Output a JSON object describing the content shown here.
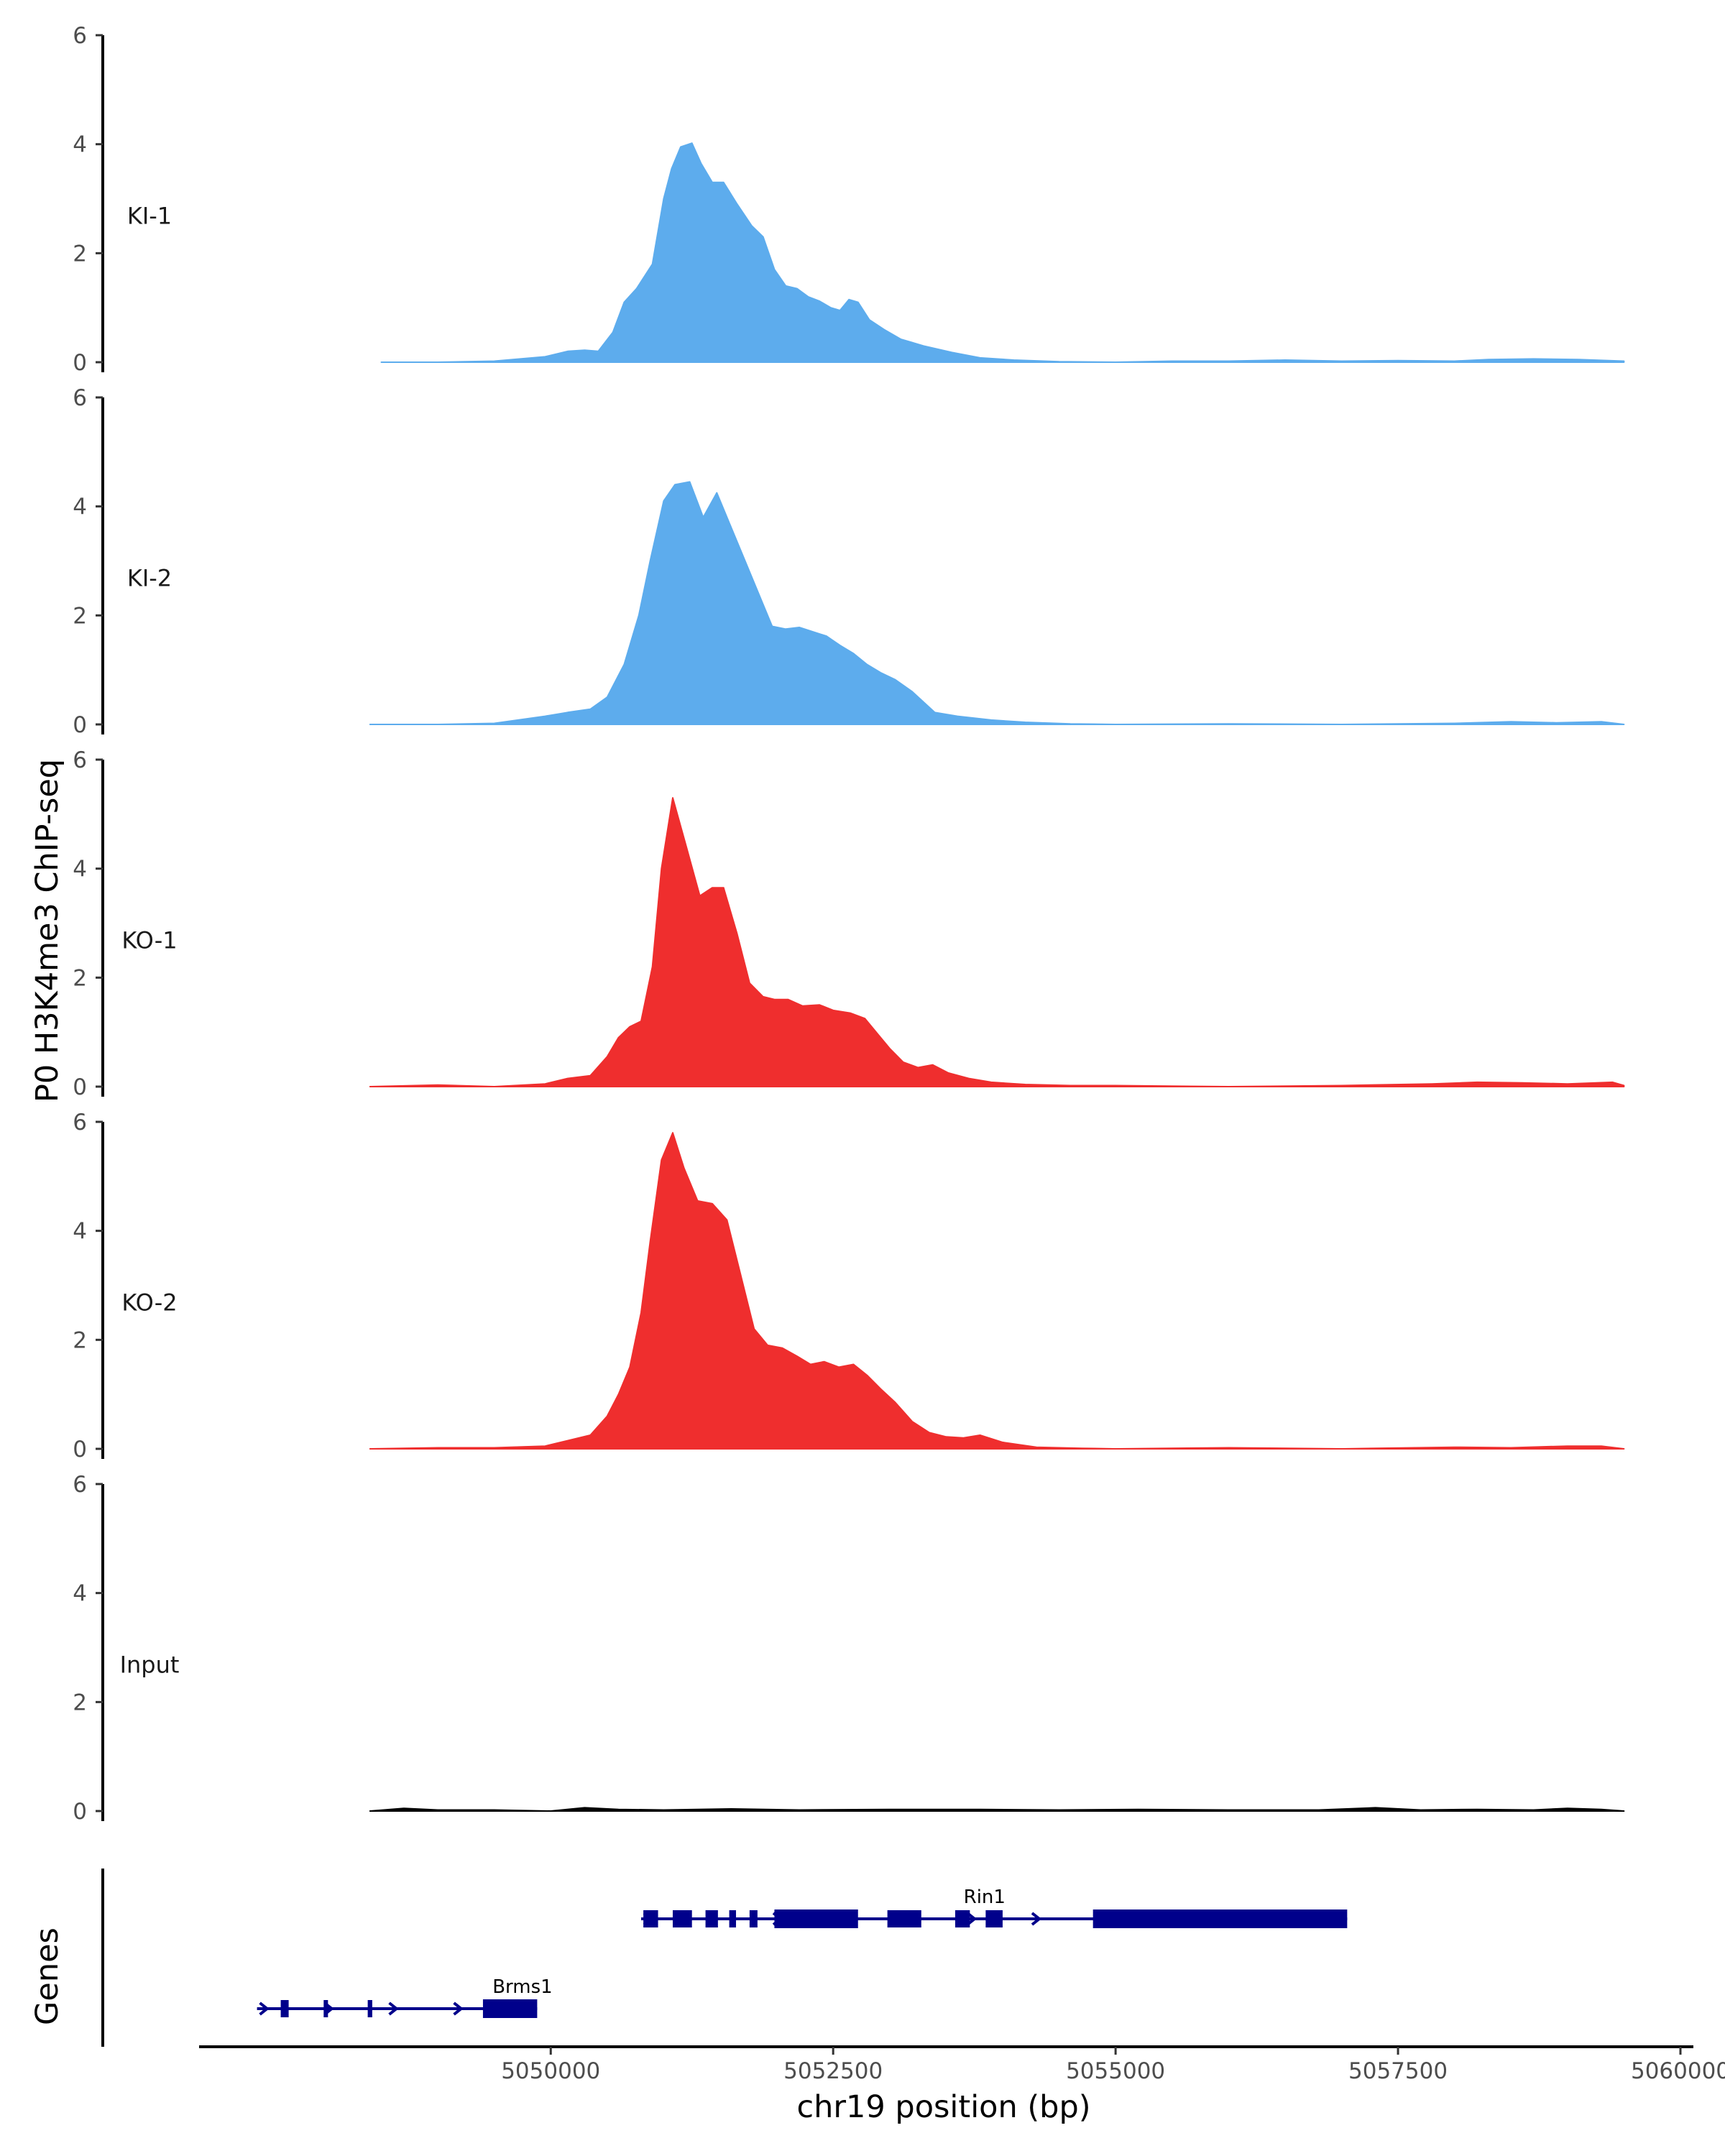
{
  "chart_data": {
    "type": "area",
    "title": "",
    "ylabel": "P0 H3K4me3 ChIP-seq",
    "xlabel": "chr19 position (bp)",
    "genes_ylabel": "Genes",
    "xlim": [
      5046900,
      5060000
    ],
    "ylim": [
      0,
      6
    ],
    "y_ticks": [
      0,
      2,
      4,
      6
    ],
    "x_ticks": [
      {
        "value": 5050000,
        "label": "5050000"
      },
      {
        "value": 5052500,
        "label": "5052500"
      },
      {
        "value": 5055000,
        "label": "5055000"
      },
      {
        "value": 5057500,
        "label": "5057500"
      },
      {
        "value": 5060000,
        "label": "5060000"
      }
    ],
    "tracks": [
      {
        "name": "KI-1",
        "color": "#5daced",
        "x": [
          5048500,
          5049000,
          5049500,
          5049950,
          5050150,
          5050300,
          5050420,
          5050550,
          5050650,
          5050760,
          5050900,
          5051000,
          5051070,
          5051150,
          5051250,
          5051330,
          5051430,
          5051530,
          5051650,
          5051780,
          5051880,
          5051980,
          5052080,
          5052180,
          5052280,
          5052380,
          5052480,
          5052560,
          5052640,
          5052720,
          5052820,
          5052950,
          5053100,
          5053300,
          5053550,
          5053800,
          5054100,
          5054500,
          5055000,
          5055500,
          5056000,
          5056500,
          5057000,
          5057500,
          5058000,
          5058300,
          5058700,
          5059100,
          5059500
        ],
        "values": [
          0.0,
          0.0,
          0.02,
          0.1,
          0.2,
          0.22,
          0.2,
          0.55,
          1.1,
          1.35,
          1.8,
          3.0,
          3.55,
          3.95,
          4.02,
          3.65,
          3.3,
          3.3,
          2.9,
          2.5,
          2.3,
          1.7,
          1.4,
          1.35,
          1.2,
          1.12,
          1.0,
          0.95,
          1.15,
          1.1,
          0.78,
          0.6,
          0.42,
          0.3,
          0.18,
          0.08,
          0.04,
          0.01,
          0.0,
          0.02,
          0.02,
          0.04,
          0.02,
          0.03,
          0.02,
          0.05,
          0.06,
          0.05,
          0.02
        ]
      },
      {
        "name": "KI-2",
        "color": "#5daced",
        "x": [
          5048400,
          5049000,
          5049500,
          5049950,
          5050150,
          5050350,
          5050500,
          5050650,
          5050780,
          5050880,
          5051000,
          5051100,
          5051230,
          5051350,
          5051470,
          5051600,
          5051720,
          5051860,
          5051960,
          5052080,
          5052200,
          5052320,
          5052440,
          5052560,
          5052680,
          5052800,
          5052920,
          5053050,
          5053200,
          5053400,
          5053600,
          5053900,
          5054200,
          5054600,
          5055000,
          5056000,
          5057000,
          5058000,
          5058500,
          5058900,
          5059300,
          5059500
        ],
        "values": [
          0.0,
          0.0,
          0.02,
          0.15,
          0.22,
          0.28,
          0.5,
          1.1,
          2.0,
          3.0,
          4.1,
          4.4,
          4.45,
          3.8,
          4.25,
          3.6,
          3.0,
          2.3,
          1.8,
          1.75,
          1.78,
          1.7,
          1.62,
          1.45,
          1.3,
          1.1,
          0.95,
          0.82,
          0.6,
          0.22,
          0.15,
          0.08,
          0.04,
          0.01,
          0.0,
          0.01,
          0.0,
          0.02,
          0.05,
          0.03,
          0.05,
          0.0
        ]
      },
      {
        "name": "KO-1",
        "color": "#ef2e2e",
        "x": [
          5048400,
          5049000,
          5049500,
          5049950,
          5050150,
          5050350,
          5050500,
          5050600,
          5050700,
          5050800,
          5050900,
          5050980,
          5051080,
          5051200,
          5051320,
          5051430,
          5051530,
          5051650,
          5051760,
          5051880,
          5051980,
          5052100,
          5052230,
          5052380,
          5052500,
          5052650,
          5052780,
          5052900,
          5053000,
          5053120,
          5053250,
          5053380,
          5053520,
          5053700,
          5053900,
          5054200,
          5054600,
          5055000,
          5056000,
          5057000,
          5057800,
          5058200,
          5058600,
          5059000,
          5059400,
          5059500
        ],
        "values": [
          0.0,
          0.03,
          0.0,
          0.05,
          0.15,
          0.2,
          0.55,
          0.9,
          1.1,
          1.2,
          2.2,
          4.0,
          5.3,
          4.4,
          3.5,
          3.65,
          3.65,
          2.8,
          1.9,
          1.65,
          1.6,
          1.6,
          1.48,
          1.5,
          1.4,
          1.35,
          1.25,
          0.95,
          0.7,
          0.45,
          0.35,
          0.4,
          0.25,
          0.15,
          0.08,
          0.04,
          0.02,
          0.02,
          0.0,
          0.02,
          0.05,
          0.08,
          0.07,
          0.05,
          0.08,
          0.02
        ]
      },
      {
        "name": "KO-2",
        "color": "#ef2e2e",
        "x": [
          5048400,
          5049000,
          5049500,
          5049950,
          5050150,
          5050350,
          5050500,
          5050600,
          5050700,
          5050800,
          5050880,
          5050980,
          5051080,
          5051180,
          5051300,
          5051430,
          5051560,
          5051680,
          5051800,
          5051920,
          5052050,
          5052180,
          5052300,
          5052420,
          5052550,
          5052680,
          5052800,
          5052920,
          5053050,
          5053200,
          5053350,
          5053500,
          5053650,
          5053800,
          5054000,
          5054300,
          5054700,
          5055000,
          5056000,
          5057000,
          5058000,
          5058500,
          5059000,
          5059300,
          5059500
        ],
        "values": [
          0.0,
          0.02,
          0.02,
          0.05,
          0.15,
          0.25,
          0.6,
          1.0,
          1.5,
          2.5,
          3.8,
          5.3,
          5.8,
          5.15,
          4.55,
          4.5,
          4.2,
          3.2,
          2.2,
          1.9,
          1.85,
          1.7,
          1.55,
          1.6,
          1.5,
          1.55,
          1.35,
          1.1,
          0.85,
          0.5,
          0.3,
          0.22,
          0.2,
          0.25,
          0.12,
          0.03,
          0.01,
          0.0,
          0.02,
          0.0,
          0.03,
          0.02,
          0.05,
          0.05,
          0.0
        ]
      },
      {
        "name": "Input",
        "color": "#000000",
        "x": [
          5048400,
          5048700,
          5049000,
          5049500,
          5050000,
          5050300,
          5050600,
          5051000,
          5051600,
          5052200,
          5053000,
          5053800,
          5054500,
          5055200,
          5056000,
          5056800,
          5057300,
          5057700,
          5058200,
          5058700,
          5059000,
          5059300,
          5059500
        ],
        "values": [
          0.0,
          0.05,
          0.02,
          0.02,
          0.0,
          0.06,
          0.03,
          0.02,
          0.04,
          0.02,
          0.03,
          0.03,
          0.02,
          0.03,
          0.02,
          0.02,
          0.06,
          0.02,
          0.03,
          0.02,
          0.05,
          0.03,
          0.0
        ]
      }
    ],
    "genes": [
      {
        "name": "Rin1",
        "label_at": 5053840,
        "row": 1,
        "strand": "+",
        "start": 5050800,
        "end": 5057050,
        "exons": [
          [
            5050820,
            5050950
          ],
          [
            5051080,
            5051250
          ],
          [
            5051370,
            5051480
          ],
          [
            5051580,
            5051640
          ],
          [
            5051760,
            5051830
          ],
          [
            5051980,
            5052720
          ],
          [
            5052980,
            5053280
          ],
          [
            5053580,
            5053710
          ],
          [
            5053850,
            5054000
          ],
          [
            5054800,
            5057050
          ]
        ],
        "thick": [
          [
            5051980,
            5052720
          ],
          [
            5054800,
            5057050
          ]
        ]
      },
      {
        "name": "Brms1",
        "label_at": 5049750,
        "row": 2,
        "strand": "+",
        "start": 5047400,
        "end": 5049880,
        "exons": [
          [
            5047610,
            5047680
          ],
          [
            5047990,
            5048020
          ],
          [
            5048380,
            5048420
          ],
          [
            5049400,
            5049880
          ]
        ],
        "thick": [
          [
            5049400,
            5049880
          ]
        ]
      }
    ]
  }
}
